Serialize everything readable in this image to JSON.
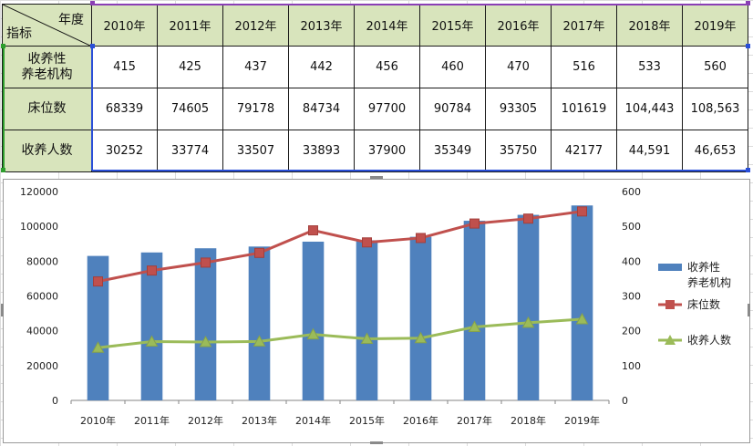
{
  "table": {
    "corner_top": "年度",
    "corner_bottom": "指标",
    "years": [
      "2010年",
      "2011年",
      "2012年",
      "2013年",
      "2014年",
      "2015年",
      "2016年",
      "2017年",
      "2018年",
      "2019年"
    ],
    "rows": [
      {
        "label_line1": "收养性",
        "label_line2": "养老机构",
        "values": [
          "415",
          "425",
          "437",
          "442",
          "456",
          "460",
          "470",
          "516",
          "533",
          "560"
        ]
      },
      {
        "label_line1": "床位数",
        "label_line2": "",
        "values": [
          "68339",
          "74605",
          "79178",
          "84734",
          "97700",
          "90784",
          "93305",
          "101619",
          "104,443",
          "108,563"
        ]
      },
      {
        "label_line1": "收养人数",
        "label_line2": "",
        "values": [
          "30252",
          "33774",
          "33507",
          "33893",
          "37900",
          "35349",
          "35750",
          "42177",
          "44,591",
          "46,653"
        ]
      }
    ]
  },
  "chart_data": {
    "type": "bar",
    "categories": [
      "2010年",
      "2011年",
      "2012年",
      "2013年",
      "2014年",
      "2015年",
      "2016年",
      "2017年",
      "2018年",
      "2019年"
    ],
    "series": [
      {
        "name": "收养性养老机构",
        "legend_line1": "收养性",
        "legend_line2": "养老机构",
        "type": "bar",
        "axis": "right",
        "color": "#4f81bd",
        "values": [
          415,
          425,
          437,
          442,
          456,
          460,
          470,
          516,
          533,
          560
        ]
      },
      {
        "name": "床位数",
        "type": "line",
        "axis": "left",
        "color": "#c0504d",
        "marker": "square",
        "values": [
          68339,
          74605,
          79178,
          84734,
          97700,
          90784,
          93305,
          101619,
          104443,
          108563
        ]
      },
      {
        "name": "收养人数",
        "type": "line",
        "axis": "left",
        "color": "#9bbb59",
        "marker": "triangle",
        "values": [
          30252,
          33774,
          33507,
          33893,
          37900,
          35349,
          35750,
          42177,
          44591,
          46653
        ]
      }
    ],
    "ylim_left": [
      0,
      120000
    ],
    "yticks_left": [
      "0",
      "20000",
      "40000",
      "60000",
      "80000",
      "100000",
      "120000"
    ],
    "ylim_right": [
      0,
      600
    ],
    "yticks_right": [
      "0",
      "100",
      "200",
      "300",
      "400",
      "500",
      "600"
    ],
    "grid": false,
    "legend_position": "right"
  }
}
